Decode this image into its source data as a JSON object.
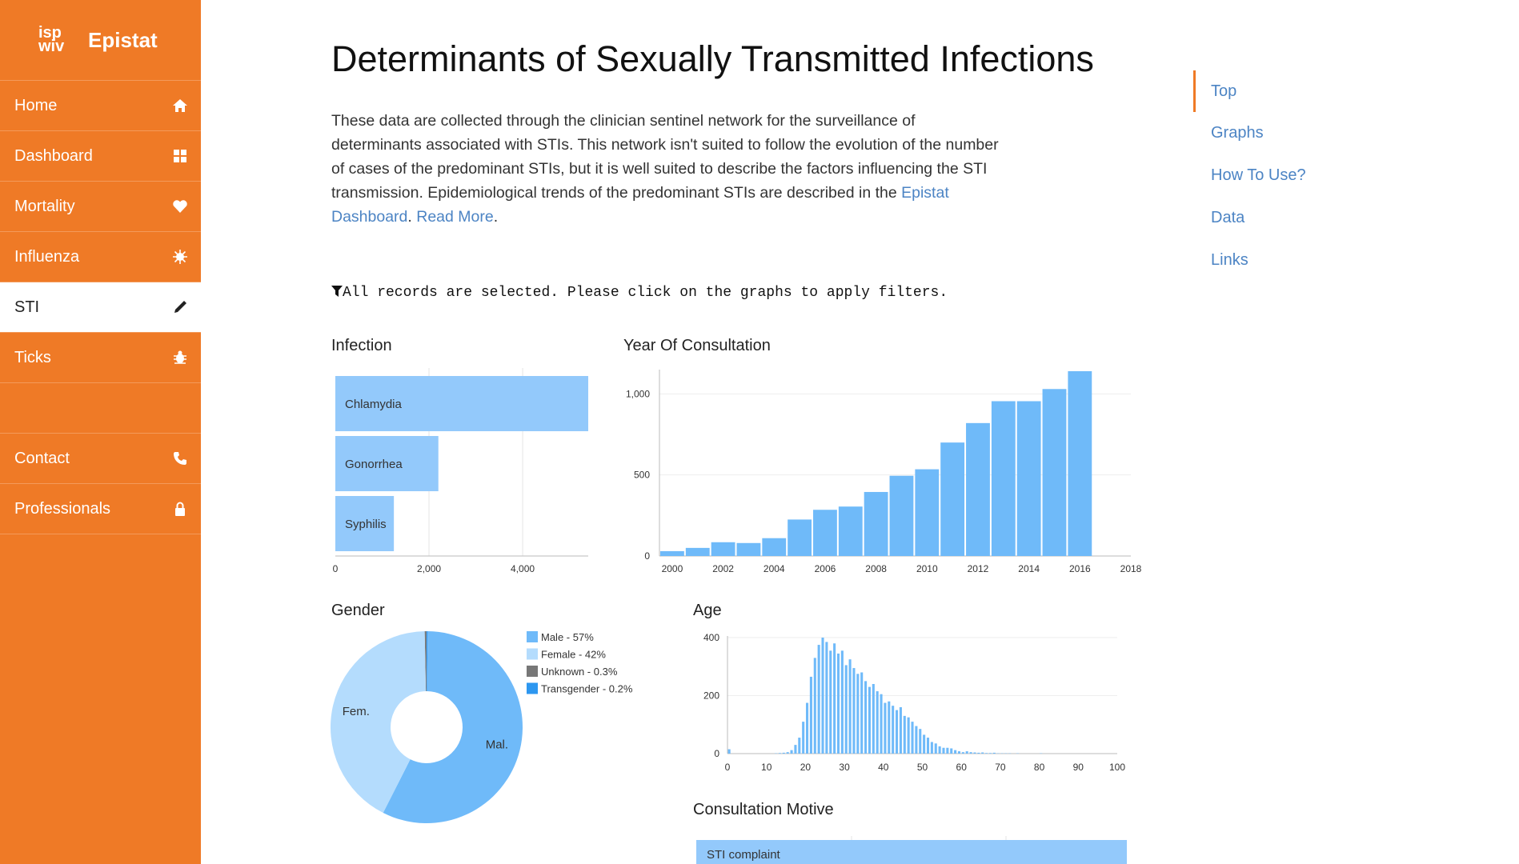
{
  "sidebar": {
    "logo": {
      "mark": "isp wiv",
      "brand": "Epistat"
    },
    "items": [
      {
        "label": "Home",
        "icon": "home-icon"
      },
      {
        "label": "Dashboard",
        "icon": "dashboard-icon"
      },
      {
        "label": "Mortality",
        "icon": "heart-icon"
      },
      {
        "label": "Influenza",
        "icon": "virus-icon"
      },
      {
        "label": "STI",
        "icon": "pencil-icon",
        "active": true
      },
      {
        "label": "Ticks",
        "icon": "bug-icon"
      },
      {
        "label": "Contact",
        "icon": "phone-icon"
      },
      {
        "label": "Professionals",
        "icon": "lock-icon"
      }
    ]
  },
  "page": {
    "title": "Determinants of Sexually Transmitted Infections",
    "intro": "These data are collected through the clinician sentinel network for the surveillance of determinants associated with STIs. This network isn't suited to follow the evolution of the number of cases of the predominant STIs, but it is well suited to describe the factors influencing the STI transmission. Epidemiological trends of the predominant STIs are described in the ",
    "intro_link1": "Epistat Dashboard",
    "intro_sep": ". ",
    "intro_link2": "Read More",
    "intro_end": ".",
    "filter_text": "All records are selected. Please click on the graphs to apply filters."
  },
  "toc": [
    "Top",
    "Graphs",
    "How To Use?",
    "Data",
    "Links"
  ],
  "colors": {
    "accent": "#ef7a26",
    "bar": "#6fbaf9",
    "bar_light": "#93c9fb",
    "link": "#4c84c4"
  },
  "chart_data": [
    {
      "type": "bar",
      "orientation": "horizontal",
      "title": "Infection",
      "categories": [
        "Chlamydia",
        "Gonorrhea",
        "Syphilis"
      ],
      "values": [
        5400,
        2200,
        1250
      ],
      "xlim": [
        0,
        5400
      ],
      "xticks": [
        "0",
        "2,000",
        "4,000"
      ]
    },
    {
      "type": "bar",
      "title": "Year Of Consultation",
      "x": [
        2000,
        2001,
        2002,
        2003,
        2004,
        2005,
        2006,
        2007,
        2008,
        2009,
        2010,
        2011,
        2012,
        2013,
        2014,
        2015,
        2016
      ],
      "values": [
        30,
        50,
        85,
        80,
        110,
        225,
        285,
        305,
        395,
        495,
        535,
        700,
        820,
        955,
        955,
        1030,
        1140
      ],
      "ylim": [
        0,
        1140
      ],
      "xticks": [
        "2000",
        "2002",
        "2004",
        "2006",
        "2008",
        "2010",
        "2012",
        "2014",
        "2016",
        "2018"
      ],
      "yticks": [
        "0",
        "500",
        "1,000"
      ]
    },
    {
      "type": "pie",
      "title": "Gender",
      "slices": [
        {
          "name": "Male",
          "value": 57,
          "short": "Mal.",
          "legend": "Male - 57%",
          "color": "#6fbaf9"
        },
        {
          "name": "Female",
          "value": 42,
          "short": "Fem.",
          "legend": "Female - 42%",
          "color": "#b4dcfd"
        },
        {
          "name": "Unknown",
          "value": 0.3,
          "short": "",
          "legend": "Unknown - 0.3%",
          "color": "#777777"
        },
        {
          "name": "Transgender",
          "value": 0.2,
          "short": "",
          "legend": "Transgender - 0.2%",
          "color": "#2d97f0"
        }
      ]
    },
    {
      "type": "bar",
      "title": "Age",
      "x": [
        0,
        1,
        2,
        3,
        4,
        5,
        6,
        7,
        8,
        9,
        10,
        11,
        12,
        13,
        14,
        15,
        16,
        17,
        18,
        19,
        20,
        21,
        22,
        23,
        24,
        25,
        26,
        27,
        28,
        29,
        30,
        31,
        32,
        33,
        34,
        35,
        36,
        37,
        38,
        39,
        40,
        41,
        42,
        43,
        44,
        45,
        46,
        47,
        48,
        49,
        50,
        51,
        52,
        53,
        54,
        55,
        56,
        57,
        58,
        59,
        60,
        61,
        62,
        63,
        64,
        65,
        66,
        67,
        68,
        69,
        70,
        71,
        72,
        73,
        74,
        75,
        76,
        77,
        78,
        79,
        80
      ],
      "values": [
        15,
        0,
        0,
        0,
        0,
        0,
        0,
        0,
        0,
        0,
        0,
        0,
        1,
        2,
        3,
        5,
        12,
        30,
        55,
        110,
        175,
        265,
        330,
        375,
        400,
        385,
        355,
        380,
        345,
        355,
        305,
        325,
        295,
        275,
        280,
        250,
        230,
        240,
        215,
        205,
        175,
        180,
        165,
        150,
        160,
        130,
        125,
        110,
        95,
        85,
        65,
        55,
        40,
        35,
        25,
        20,
        20,
        18,
        12,
        8,
        5,
        8,
        5,
        4,
        3,
        4,
        2,
        2,
        3,
        1,
        1,
        1,
        1,
        0,
        1,
        0,
        0,
        0,
        0,
        0,
        1
      ],
      "ylim": [
        0,
        400
      ],
      "xlim": [
        0,
        100
      ],
      "xticks": [
        "0",
        "10",
        "20",
        "30",
        "40",
        "50",
        "60",
        "70",
        "80",
        "90",
        "100"
      ],
      "yticks": [
        "0",
        "200",
        "400"
      ]
    },
    {
      "type": "bar",
      "orientation": "horizontal",
      "title": "Consultation Motive",
      "categories": [
        "STI complaint"
      ],
      "values": [
        5500
      ]
    }
  ]
}
